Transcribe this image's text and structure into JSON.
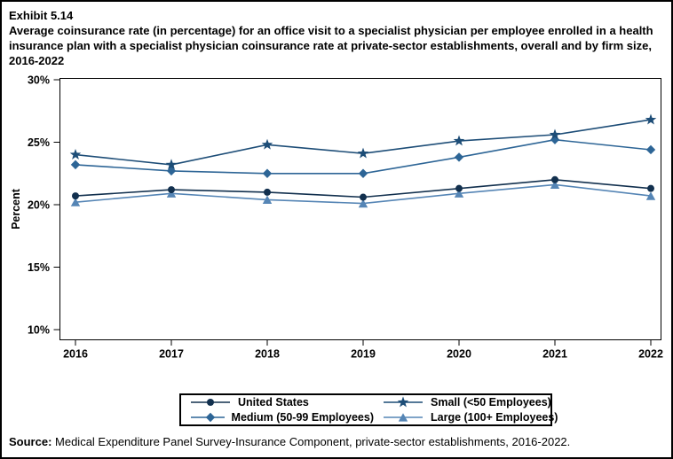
{
  "header": {
    "exhibit": "Exhibit 5.14",
    "title": "Average coinsurance rate (in percentage) for an office visit to a specialist physician per employee enrolled in a health insurance plan with a specialist physician coinsurance rate at private-sector establishments, overall and by firm size, 2016-2022"
  },
  "chart_data": {
    "type": "line",
    "title": "Average coinsurance rate for an office visit to a specialist physician, 2016-2022",
    "xlabel": "",
    "ylabel": "Percent",
    "x": [
      "2016",
      "2017",
      "2018",
      "2019",
      "2020",
      "2021",
      "2022"
    ],
    "series": [
      {
        "name": "United States",
        "marker": "circle",
        "color": "#12304e",
        "values": [
          20.7,
          21.2,
          21.0,
          20.6,
          21.3,
          22.0,
          21.3
        ]
      },
      {
        "name": "Small (<50 Employees)",
        "marker": "star",
        "color": "#1d4d77",
        "values": [
          24.0,
          23.2,
          24.8,
          24.1,
          25.1,
          25.6,
          26.8
        ]
      },
      {
        "name": "Medium (50-99 Employees)",
        "marker": "diamond",
        "color": "#2d6596",
        "values": [
          23.2,
          22.7,
          22.5,
          22.5,
          23.8,
          25.2,
          24.4
        ]
      },
      {
        "name": "Large (100+ Employees)",
        "marker": "triangle",
        "color": "#5585b5",
        "values": [
          20.2,
          20.9,
          20.4,
          20.1,
          20.9,
          21.6,
          20.7
        ]
      }
    ],
    "yticks": [
      10,
      15,
      20,
      25,
      30
    ],
    "ytick_labels": [
      "10%",
      "15%",
      "20%",
      "25%",
      "30%"
    ],
    "ylim": [
      9.2,
      30.1
    ],
    "grid": false,
    "legend_position": "bottom",
    "axis_color": "#000000"
  },
  "source": {
    "label": "Source:",
    "text": " Medical Expenditure Panel Survey-Insurance Component, private-sector establishments, 2016-2022."
  }
}
